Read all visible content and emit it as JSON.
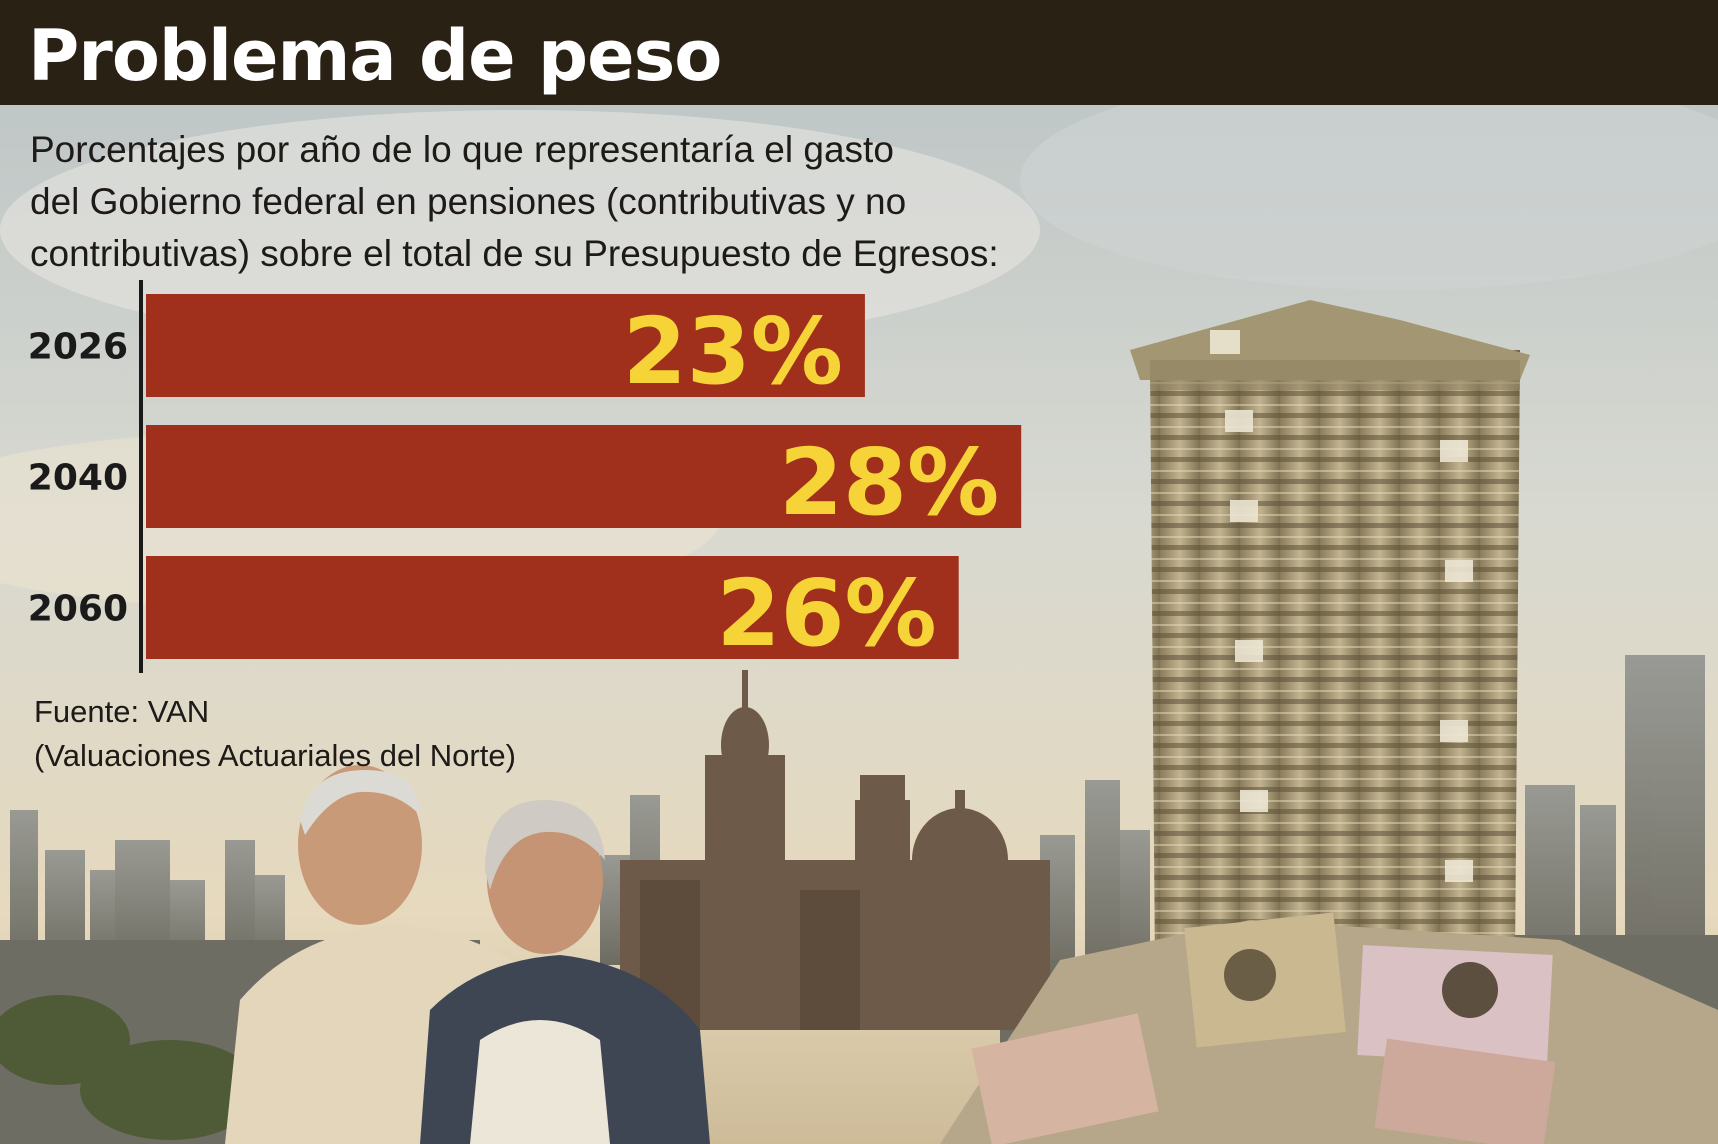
{
  "header": {
    "title": "Problema de peso"
  },
  "subtitle_lines": [
    "Porcentajes por año de lo que representaría el gasto",
    "del Gobierno federal en pensiones (contributivas y no",
    "contributivas) sobre el total de su Presupuesto de Egresos:"
  ],
  "chart_data": {
    "type": "bar",
    "orientation": "horizontal",
    "categories": [
      "2026",
      "2040",
      "2060"
    ],
    "values": [
      23,
      28,
      26
    ],
    "value_labels": [
      "23%",
      "28%",
      "26%"
    ],
    "unit": "%",
    "xlim": [
      0,
      35
    ],
    "grid": false,
    "legend": "none",
    "bar_color": "#a0301c",
    "label_color": "#f6d437"
  },
  "source_lines": [
    "Fuente: VAN",
    "(Valuaciones Actuariales del Norte)"
  ],
  "colors": {
    "header_band": "#2a2115",
    "title_text": "#ffffff",
    "body_text": "#1d1a17",
    "axis_line": "#1a1a1a"
  }
}
